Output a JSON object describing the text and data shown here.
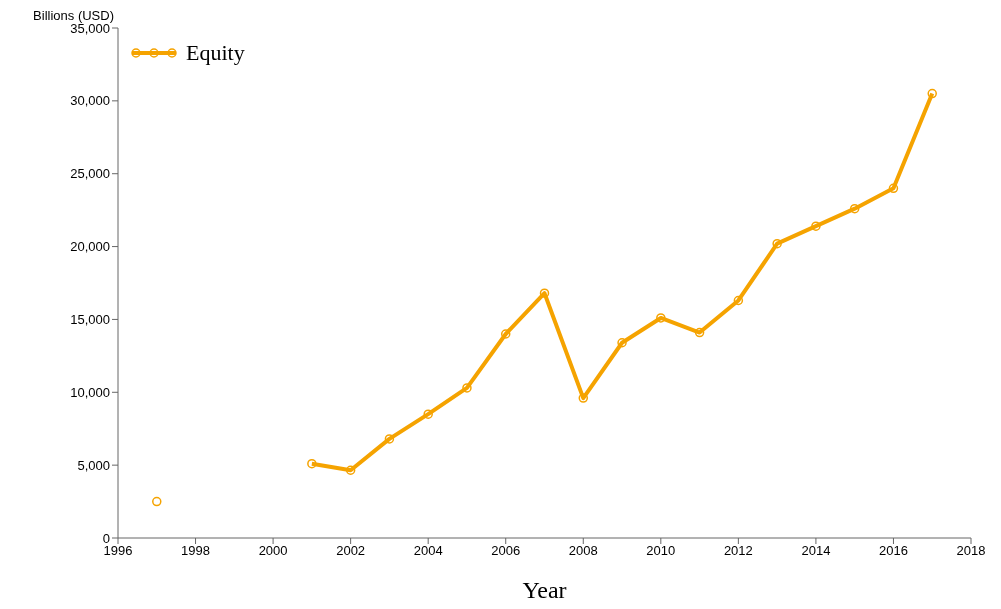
{
  "chart_data": {
    "type": "line",
    "xlabel": "Year",
    "ylabel": "Billions (USD)",
    "x": [
      1997,
      1998,
      1999,
      2000,
      2001,
      2002,
      2003,
      2004,
      2005,
      2006,
      2007,
      2008,
      2009,
      2010,
      2011,
      2012,
      2013,
      2014,
      2015,
      2016,
      2017
    ],
    "series": [
      {
        "name": "Equity",
        "color": "#f5a300",
        "values": [
          2500,
          null,
          null,
          null,
          5100,
          4650,
          6800,
          8500,
          10300,
          14000,
          16800,
          9600,
          13400,
          15100,
          14100,
          16300,
          20200,
          21400,
          22600,
          24000,
          30500
        ]
      }
    ],
    "xlim": [
      1996,
      2018
    ],
    "xticks": [
      1996,
      1998,
      2000,
      2002,
      2004,
      2006,
      2008,
      2010,
      2012,
      2014,
      2016,
      2018
    ],
    "ylim": [
      0,
      35000
    ],
    "yticks": [
      0,
      {
        "value": 5000,
        "label": "5,000"
      },
      {
        "value": 10000,
        "label": "10,000"
      },
      {
        "value": 15000,
        "label": "15,000"
      },
      {
        "value": 20000,
        "label": "20,000"
      },
      {
        "value": 25000,
        "label": "25,000"
      },
      {
        "value": 30000,
        "label": "30,000"
      },
      {
        "value": 35000,
        "label": "35,000"
      }
    ],
    "grid": false,
    "legend": "top left",
    "marker": "circle",
    "line_style": "solid"
  }
}
